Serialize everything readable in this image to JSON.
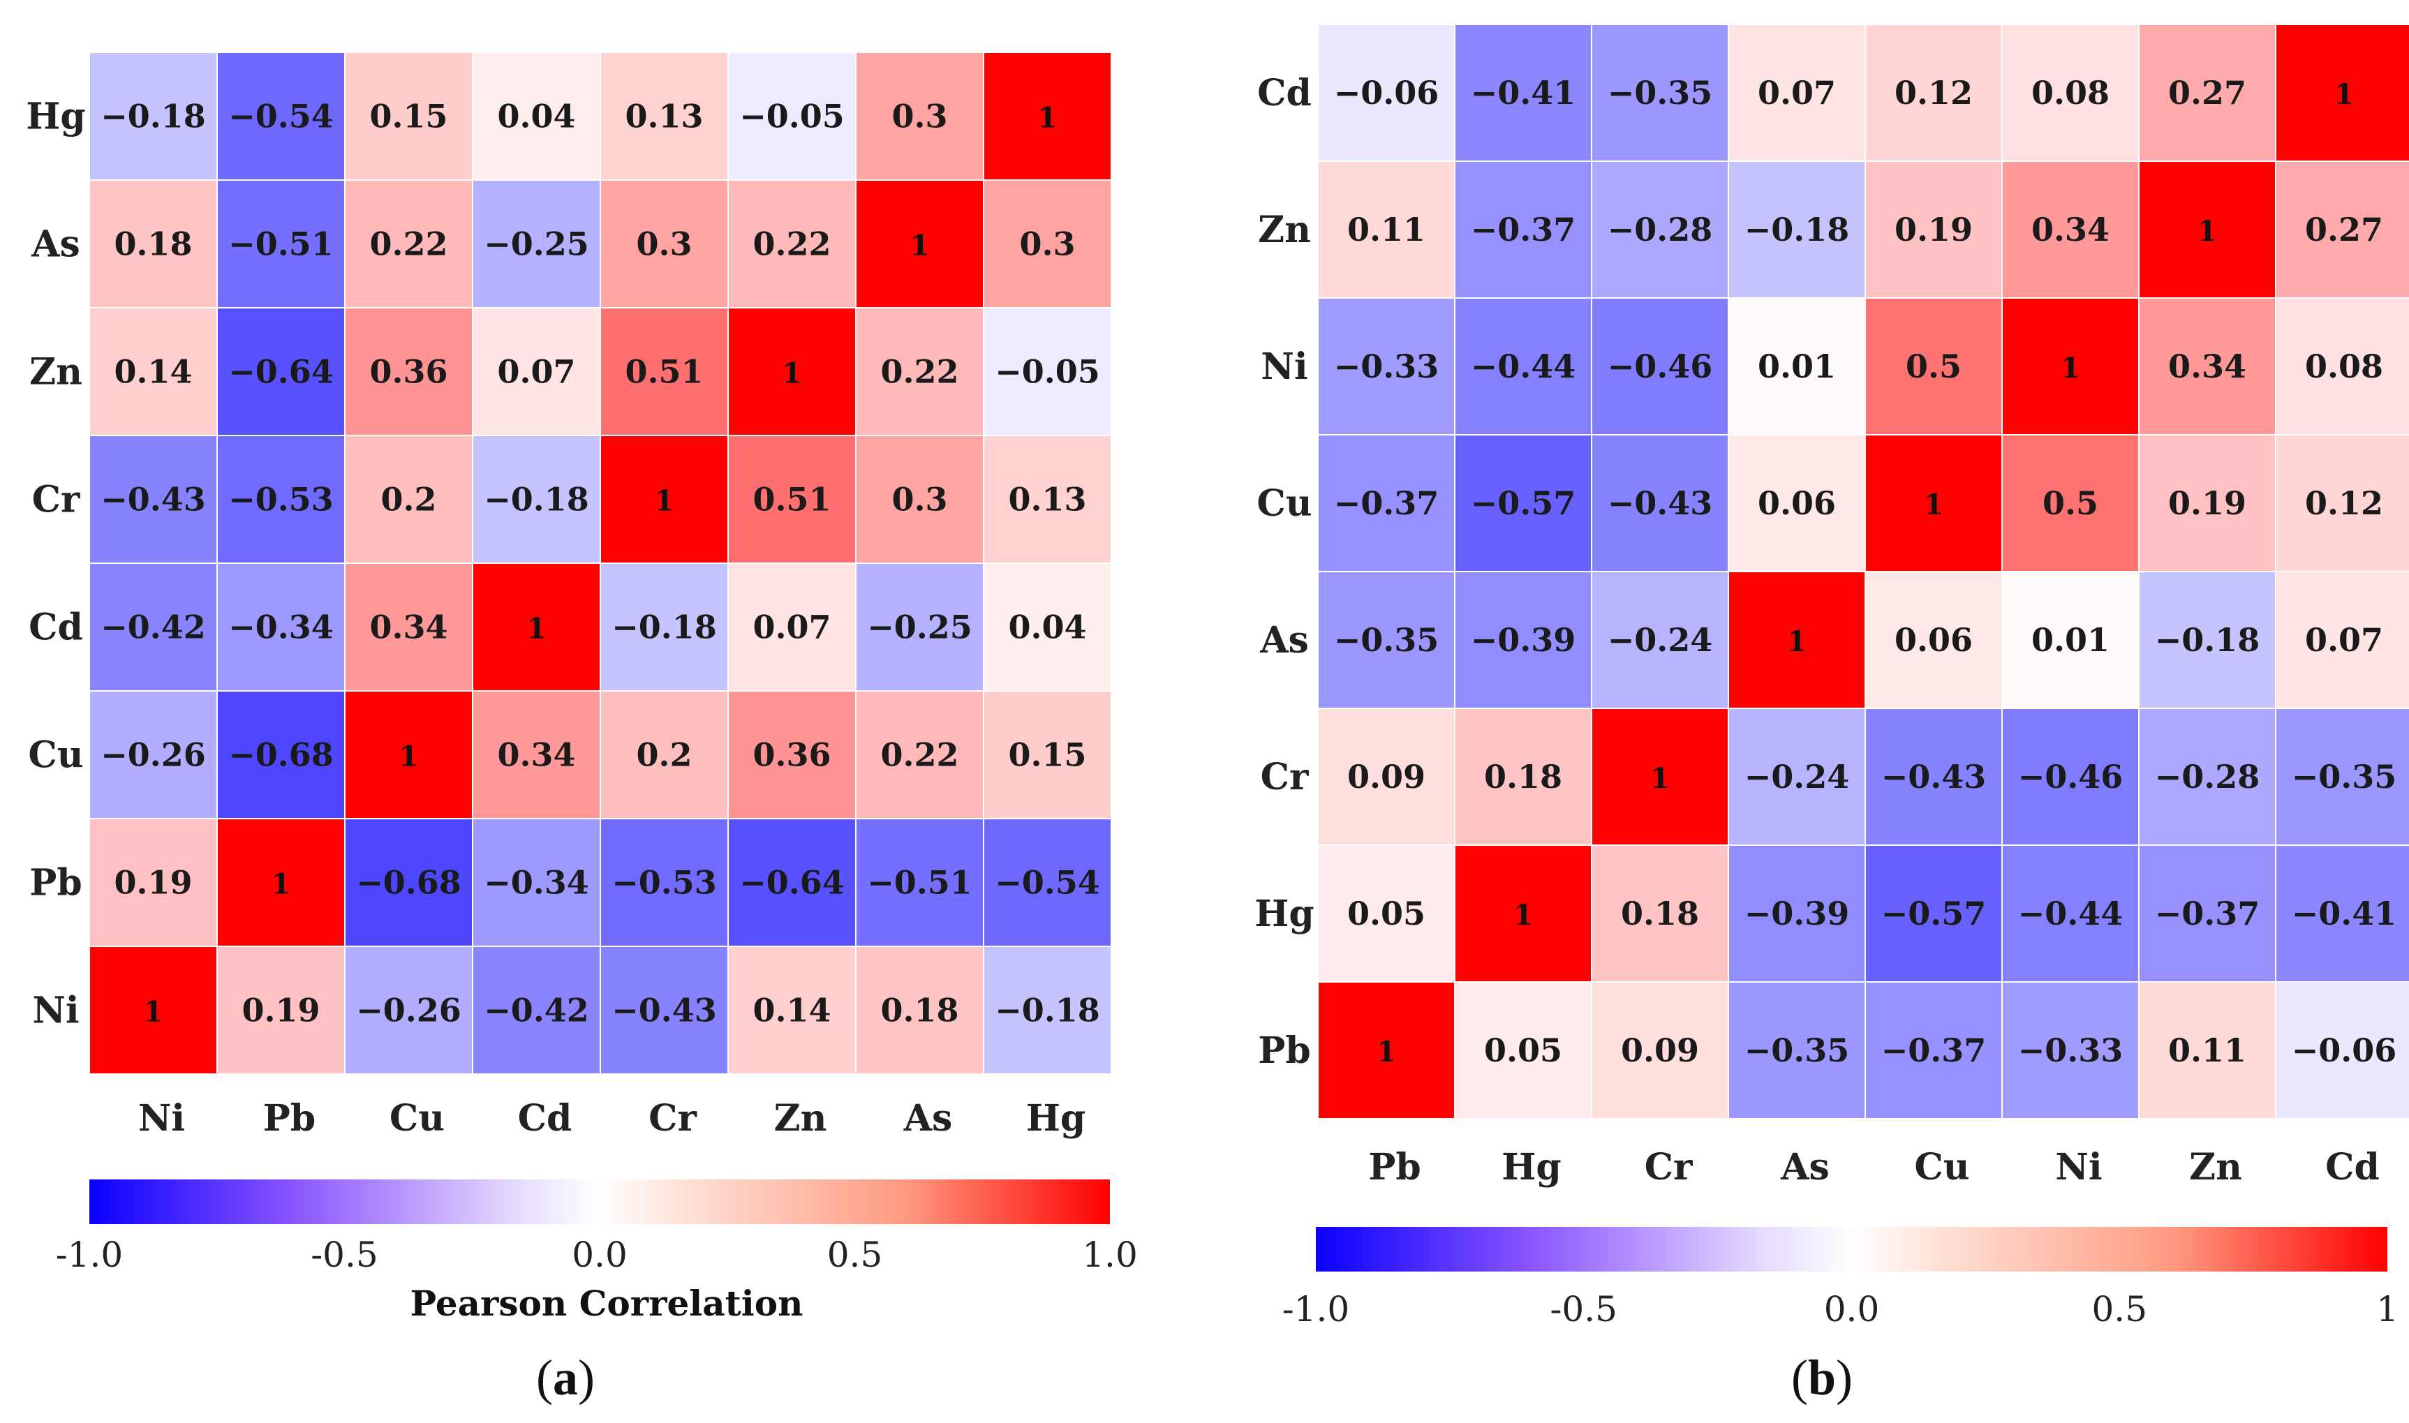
{
  "chart_data": [
    {
      "type": "heatmap",
      "panel_label": "a",
      "row_labels": [
        "Hg",
        "As",
        "Zn",
        "Cr",
        "Cd",
        "Cu",
        "Pb",
        "Ni"
      ],
      "col_labels": [
        "Ni",
        "Pb",
        "Cu",
        "Cd",
        "Cr",
        "Zn",
        "As",
        "Hg"
      ],
      "values": [
        [
          -0.18,
          -0.54,
          0.15,
          0.04,
          0.13,
          -0.05,
          0.3,
          1
        ],
        [
          0.18,
          -0.51,
          0.22,
          -0.25,
          0.3,
          0.22,
          1,
          0.3
        ],
        [
          0.14,
          -0.64,
          0.36,
          0.07,
          0.51,
          1,
          0.22,
          -0.05
        ],
        [
          -0.43,
          -0.53,
          0.2,
          -0.18,
          1,
          0.51,
          0.3,
          0.13
        ],
        [
          -0.42,
          -0.34,
          0.34,
          1,
          -0.18,
          0.07,
          -0.25,
          0.04
        ],
        [
          -0.26,
          -0.68,
          1,
          0.34,
          0.2,
          0.36,
          0.22,
          0.15
        ],
        [
          0.19,
          1,
          -0.68,
          -0.34,
          -0.53,
          -0.64,
          -0.51,
          -0.54
        ],
        [
          1,
          0.19,
          -0.26,
          -0.42,
          -0.43,
          0.14,
          0.18,
          -0.18
        ]
      ],
      "colorbar": {
        "range": [
          -1.0,
          1.0
        ],
        "ticks": [
          "-1.0",
          "-0.5",
          "0.0",
          "0.5",
          "1.0"
        ],
        "label": "Pearson Correlation"
      }
    },
    {
      "type": "heatmap",
      "panel_label": "b",
      "row_labels": [
        "Cd",
        "Zn",
        "Ni",
        "Cu",
        "As",
        "Cr",
        "Hg",
        "Pb"
      ],
      "col_labels": [
        "Pb",
        "Hg",
        "Cr",
        "As",
        "Cu",
        "Ni",
        "Zn",
        "Cd"
      ],
      "values": [
        [
          -0.06,
          -0.41,
          -0.35,
          0.07,
          0.12,
          0.08,
          0.27,
          1
        ],
        [
          0.11,
          -0.37,
          -0.28,
          -0.18,
          0.19,
          0.34,
          1,
          0.27
        ],
        [
          -0.33,
          -0.44,
          -0.46,
          0.01,
          0.5,
          1,
          0.34,
          0.08
        ],
        [
          -0.37,
          -0.57,
          -0.43,
          0.06,
          1,
          0.5,
          0.19,
          0.12
        ],
        [
          -0.35,
          -0.39,
          -0.24,
          1,
          0.06,
          0.01,
          -0.18,
          0.07
        ],
        [
          0.09,
          0.18,
          1,
          -0.24,
          -0.43,
          -0.46,
          -0.28,
          -0.35
        ],
        [
          0.05,
          1,
          0.18,
          -0.39,
          -0.57,
          -0.44,
          -0.37,
          -0.41
        ],
        [
          1,
          0.05,
          0.09,
          -0.35,
          -0.37,
          -0.33,
          0.11,
          -0.06
        ]
      ],
      "colorbar": {
        "range": [
          -1.0,
          1.0
        ],
        "ticks": [
          "-1.0",
          "-0.5",
          "0.0",
          "0.5",
          "1"
        ],
        "label": ""
      }
    }
  ],
  "colors": {
    "negative_end": "#0a00ff",
    "mid": "#ffffff",
    "positive_end": "#ff0000",
    "text": "#1a1a1a"
  }
}
